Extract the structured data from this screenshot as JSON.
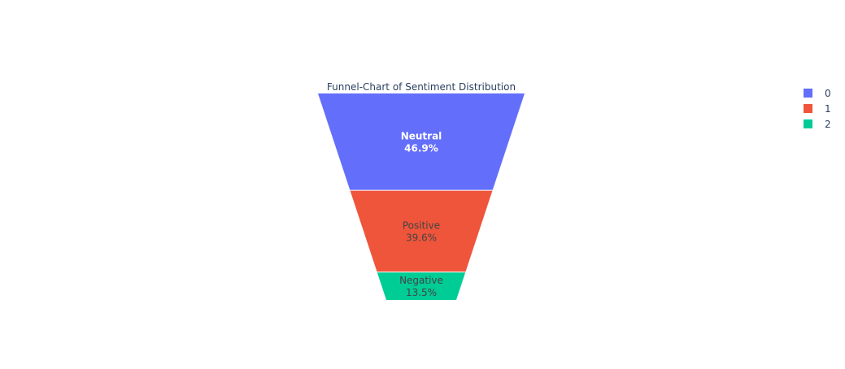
{
  "chart_data": {
    "type": "funnel",
    "title": "Funnel-Chart of Sentiment Distribution",
    "stages": [
      {
        "label": "Neutral",
        "percent_label": "46.9%",
        "value": 46.9,
        "color": "#636efa",
        "text_color": "#ffffff",
        "bold": true,
        "legend": "0"
      },
      {
        "label": "Positive",
        "percent_label": "39.6%",
        "value": 39.6,
        "color": "#ef553b",
        "text_color": "#444444",
        "bold": false,
        "legend": "1"
      },
      {
        "label": "Negative",
        "percent_label": "13.5%",
        "value": 13.5,
        "color": "#00cc96",
        "text_color": "#444444",
        "bold": false,
        "legend": "2"
      }
    ],
    "legend_position": "top-right"
  }
}
